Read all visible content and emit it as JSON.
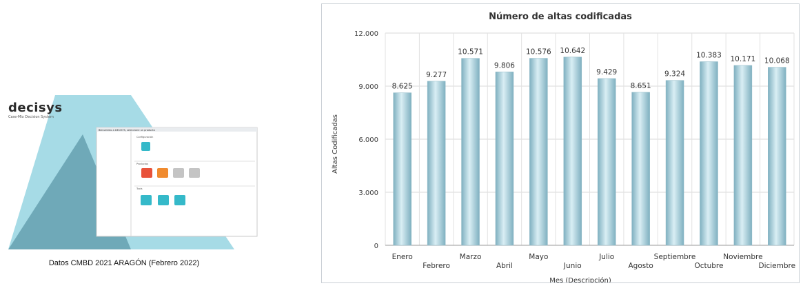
{
  "promo": {
    "logo_text": "decisys",
    "logo_tagline": "Case-Mix Decision System",
    "window_title": "Bienvenido a DECISYS, seleccione un producto",
    "section_config": "Configuración",
    "section_products": "Productos",
    "section_tools": "Tools",
    "caption": "Datos CMBD 2021 ARAGÓN (Febrero 2022)"
  },
  "colors": {
    "bar": "#a9cfdc",
    "triangle_light": "#8fd0de",
    "triangle_dark": "#6fa9b8",
    "grid": "#dcdcdc"
  },
  "chart_data": {
    "type": "bar",
    "title": "Número de altas codificadas",
    "xlabel": "Mes (Descripción)",
    "ylabel": "Altas Codificadas",
    "categories": [
      "Enero",
      "Febrero",
      "Marzo",
      "Abril",
      "Mayo",
      "Junio",
      "Julio",
      "Agosto",
      "Septiembre",
      "Octubre",
      "Noviembre",
      "Diciembre"
    ],
    "values": [
      8625,
      9277,
      10571,
      9806,
      10576,
      10642,
      9429,
      8651,
      9324,
      10383,
      10171,
      10068
    ],
    "value_labels": [
      "8.625",
      "9.277",
      "10.571",
      "9.806",
      "10.576",
      "10.642",
      "9.429",
      "8.651",
      "9.324",
      "10.383",
      "10.171",
      "10.068"
    ],
    "yticks": [
      0,
      3000,
      6000,
      9000,
      12000
    ],
    "ytick_labels": [
      "0",
      "3.000",
      "6.000",
      "9.000",
      "12.000"
    ],
    "ylim": [
      0,
      12000
    ],
    "grid": true,
    "legend": "none"
  }
}
